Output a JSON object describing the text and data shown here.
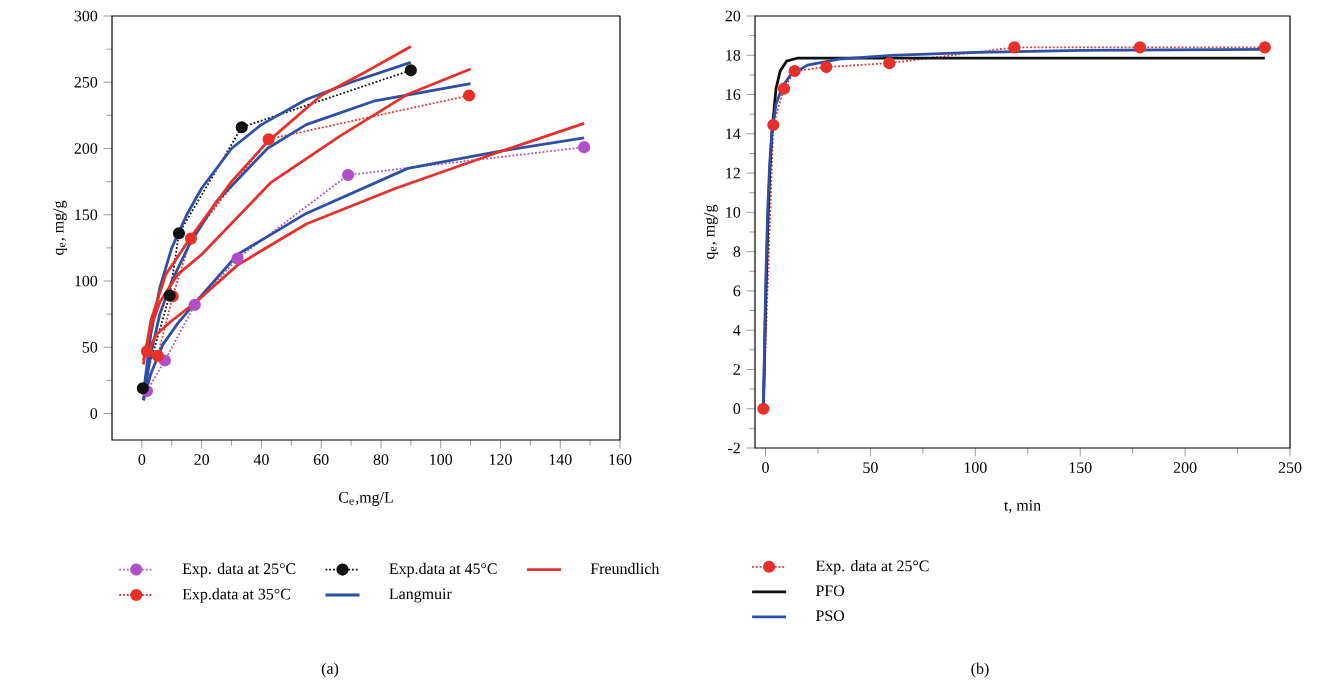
{
  "chart_data": [
    {
      "type": "line",
      "xlabel": "C$_{e}$,mg/L",
      "ylabel": "q$_{e}$, mg/g",
      "xlim": [
        -10,
        160
      ],
      "ylim": [
        -20,
        300
      ],
      "xticks": [
        0,
        20,
        40,
        60,
        80,
        100,
        120,
        140,
        160
      ],
      "yticks": [
        0,
        50,
        100,
        150,
        200,
        250,
        300
      ],
      "legend": "bottom",
      "annotations": [
        "(a)"
      ],
      "series": [
        {
          "name": "Exp. data at 25°C",
          "color": "#b14fc8",
          "marker": "circle",
          "line_style": "dotted",
          "x": [
            1.7,
            7.7,
            17.7,
            32,
            69,
            148
          ],
          "values": [
            17,
            40,
            82,
            117,
            180,
            201
          ]
        },
        {
          "name": "Exp.data at 35°C",
          "color": "#e8302a",
          "marker": "circle",
          "line_style": "dotted",
          "x": [
            1.7,
            5.3,
            10.3,
            16.4,
            42.4,
            109.5
          ],
          "values": [
            47,
            43.5,
            88.5,
            132,
            207,
            240
          ]
        },
        {
          "name": "Exp.data at 45°C",
          "color": "#111111",
          "marker": "circle",
          "line_style": "dotted",
          "x": [
            0.3,
            9.3,
            12.4,
            33.4,
            90
          ],
          "values": [
            19,
            89,
            136,
            216,
            259
          ]
        },
        {
          "name": "Langmuir",
          "color": "#2e4fa8",
          "marker": "none",
          "line_style": "solid",
          "x": [
            0.5,
            3,
            6,
            10,
            15,
            20,
            30,
            40,
            55,
            70,
            90
          ],
          "values": [
            15,
            60,
            95,
            125,
            150,
            170,
            200,
            218,
            237,
            250,
            265
          ]
        },
        {
          "color": "#2e4fa8",
          "marker": "none",
          "line_style": "solid",
          "x": [
            0.5,
            3,
            6,
            10,
            16,
            25,
            42,
            55,
            78,
            110
          ],
          "values": [
            10,
            45,
            75,
            100,
            128,
            160,
            200,
            218,
            236,
            249
          ]
        },
        {
          "color": "#2e4fa8",
          "marker": "none",
          "line_style": "solid",
          "x": [
            0.5,
            3,
            7,
            12,
            18,
            32,
            55,
            89,
            120,
            148
          ],
          "values": [
            10,
            30,
            52,
            68,
            84,
            120,
            151,
            185,
            198,
            208
          ]
        },
        {
          "name": "Freundlich",
          "color": "#e8302a",
          "marker": "none",
          "line_style": "solid",
          "x": [
            0.5,
            3,
            8,
            17,
            30,
            42,
            60,
            75,
            90
          ],
          "values": [
            37,
            70,
            105,
            135,
            175,
            205,
            240,
            258,
            277
          ]
        },
        {
          "color": "#e8302a",
          "marker": "none",
          "line_style": "solid",
          "x": [
            0.5,
            3,
            6,
            12,
            20,
            43,
            66,
            89,
            110
          ],
          "values": [
            40,
            65,
            84,
            105,
            120,
            174,
            209,
            241,
            260
          ]
        },
        {
          "color": "#e8302a",
          "marker": "none",
          "line_style": "solid",
          "x": [
            1.5,
            5,
            10,
            18,
            32,
            55,
            85,
            119,
            148
          ],
          "values": [
            45,
            60,
            70,
            84,
            112,
            143,
            170,
            197,
            219
          ]
        }
      ]
    },
    {
      "type": "line",
      "xlabel": "t, min",
      "ylabel": "q$_{e}$, mg/g",
      "xlim": [
        -5,
        250
      ],
      "ylim": [
        -2,
        20
      ],
      "xticks": [
        0,
        50,
        100,
        150,
        200,
        250
      ],
      "yticks": [
        -2,
        0,
        2,
        4,
        6,
        8,
        10,
        12,
        14,
        16,
        18,
        20
      ],
      "legend": "bottom",
      "annotations": [
        "(b)"
      ],
      "series": [
        {
          "name": "Exp. data at 25°C",
          "color": "#e8302a",
          "marker": "circle",
          "line_style": "dotted",
          "x": [
            -1,
            3.7,
            8.8,
            13.9,
            29,
            59,
            118.6,
            178.5,
            238
          ],
          "values": [
            0,
            14.45,
            16.3,
            17.2,
            17.4,
            17.6,
            18.4,
            18.4,
            18.4
          ]
        },
        {
          "name": "PFO",
          "color": "#111111",
          "marker": "none",
          "line_style": "solid",
          "x": [
            -1,
            0,
            1,
            2,
            3,
            5,
            7,
            10,
            15,
            30,
            238
          ],
          "values": [
            0,
            5,
            9,
            12,
            14,
            16.3,
            17.2,
            17.7,
            17.85,
            17.85,
            17.85
          ]
        },
        {
          "name": "PSO",
          "color": "#2e4fa8",
          "marker": "none",
          "line_style": "solid",
          "x": [
            -1,
            0,
            1,
            2,
            3,
            5,
            8,
            12,
            20,
            35,
            60,
            100,
            150,
            238
          ],
          "values": [
            0,
            6,
            10,
            12.5,
            14,
            15.5,
            16.4,
            17,
            17.5,
            17.8,
            18,
            18.15,
            18.25,
            18.3
          ]
        }
      ]
    }
  ]
}
